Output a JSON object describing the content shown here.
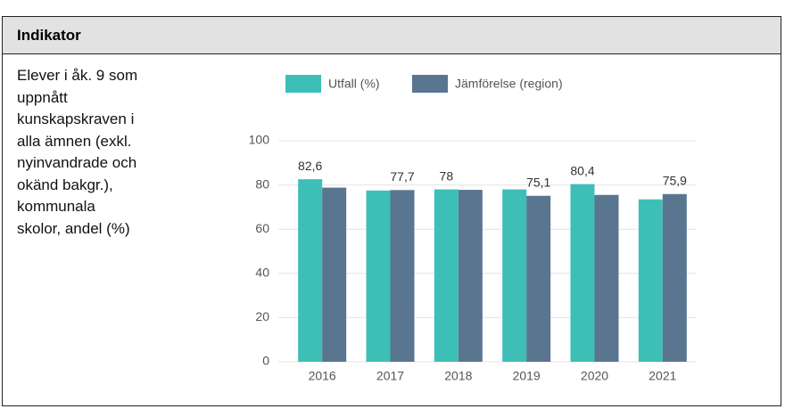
{
  "header": {
    "title": "Indikator"
  },
  "row_label": [
    "Elever i åk. 9 som",
    "uppnått",
    "kunskapskraven i",
    "alla ämnen (exkl.",
    "nyinvandrade och",
    "okänd bakgr.),",
    "kommunala",
    "skolor, andel (%)"
  ],
  "chart_data": {
    "type": "bar",
    "categories": [
      "2016",
      "2017",
      "2018",
      "2019",
      "2020",
      "2021"
    ],
    "series": [
      {
        "name": "Utfall (%)",
        "color": "#3dbfb8",
        "values": [
          82.6,
          77.5,
          78,
          78,
          80.4,
          73.5
        ],
        "value_labels": [
          "82,6",
          null,
          "78",
          null,
          "80,4",
          null
        ]
      },
      {
        "name": "Jämförelse (region)",
        "color": "#5a7590",
        "values": [
          78.8,
          77.7,
          77.8,
          75.1,
          75.5,
          75.9
        ],
        "value_labels": [
          null,
          "77,7",
          null,
          "75,1",
          null,
          "75,9"
        ]
      }
    ],
    "ylim": [
      0,
      100
    ],
    "yticks": [
      0,
      20,
      40,
      60,
      80,
      100
    ],
    "grid": true
  }
}
